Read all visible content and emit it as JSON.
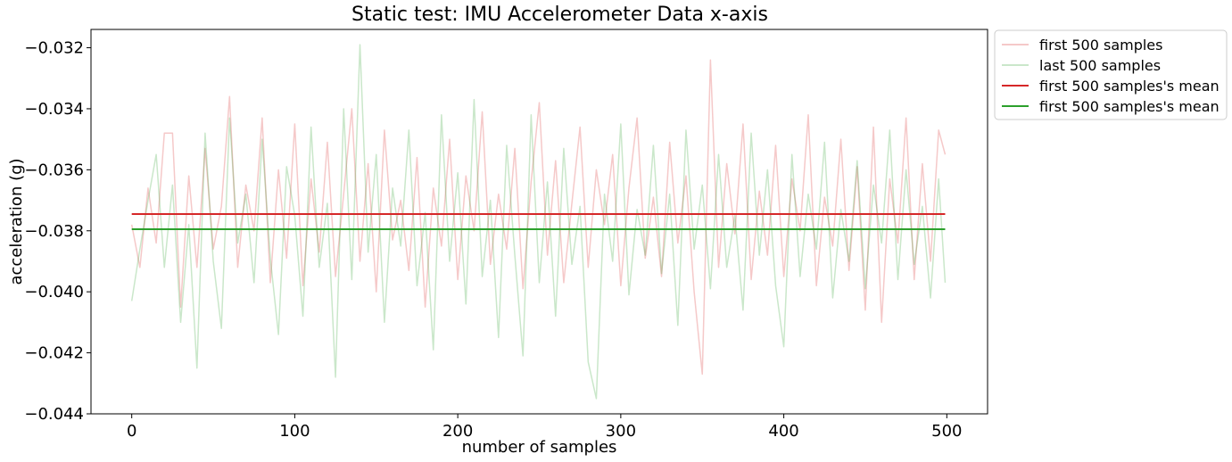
{
  "chart_data": {
    "type": "line",
    "title": "Static test: IMU Accelerometer Data x-axis",
    "xlabel": "number of samples",
    "ylabel": "acceleration (g)",
    "xlim": [
      -25,
      525
    ],
    "ylim": [
      -0.044,
      -0.0314
    ],
    "xticks": [
      0,
      100,
      200,
      300,
      400,
      500
    ],
    "xtick_labels": [
      "0",
      "100",
      "200",
      "300",
      "400",
      "500"
    ],
    "yticks": [
      -0.044,
      -0.042,
      -0.04,
      -0.038,
      -0.036,
      -0.034,
      -0.032
    ],
    "ytick_labels": [
      "−0.044",
      "−0.042",
      "−0.040",
      "−0.038",
      "−0.036",
      "−0.034",
      "−0.032"
    ],
    "grid": false,
    "legend_position": "outside-top-right",
    "series": [
      {
        "name": "first 500 samples",
        "color": "#d62728",
        "opacity": 0.25,
        "linewidth": 1.5,
        "x": [
          0,
          5,
          10,
          15,
          20,
          25,
          30,
          35,
          40,
          45,
          50,
          55,
          60,
          65,
          70,
          75,
          80,
          85,
          90,
          95,
          100,
          105,
          110,
          115,
          120,
          125,
          130,
          135,
          140,
          145,
          150,
          155,
          160,
          165,
          170,
          175,
          180,
          185,
          190,
          195,
          200,
          205,
          210,
          215,
          220,
          225,
          230,
          235,
          240,
          245,
          250,
          255,
          260,
          265,
          270,
          275,
          280,
          285,
          290,
          295,
          300,
          305,
          310,
          315,
          320,
          325,
          330,
          335,
          340,
          345,
          350,
          355,
          360,
          365,
          370,
          375,
          380,
          385,
          390,
          395,
          400,
          405,
          410,
          415,
          420,
          425,
          430,
          435,
          440,
          445,
          450,
          455,
          460,
          465,
          470,
          475,
          480,
          485,
          490,
          495,
          499
        ],
        "y": [
          -0.0378,
          -0.0392,
          -0.0366,
          -0.0384,
          -0.0348,
          -0.0348,
          -0.0405,
          -0.0362,
          -0.0392,
          -0.0353,
          -0.0386,
          -0.0372,
          -0.0336,
          -0.0392,
          -0.0365,
          -0.038,
          -0.0343,
          -0.0397,
          -0.036,
          -0.0389,
          -0.0345,
          -0.0398,
          -0.0363,
          -0.0387,
          -0.0351,
          -0.0395,
          -0.0368,
          -0.034,
          -0.039,
          -0.0358,
          -0.04,
          -0.0347,
          -0.0383,
          -0.037,
          -0.0393,
          -0.0356,
          -0.0405,
          -0.0366,
          -0.0385,
          -0.035,
          -0.0396,
          -0.0362,
          -0.038,
          -0.0341,
          -0.0391,
          -0.0368,
          -0.0386,
          -0.0353,
          -0.0399,
          -0.0364,
          -0.0338,
          -0.0388,
          -0.0357,
          -0.0397,
          -0.0371,
          -0.0346,
          -0.0392,
          -0.036,
          -0.0378,
          -0.0355,
          -0.0398,
          -0.0366,
          -0.0343,
          -0.0389,
          -0.0369,
          -0.0395,
          -0.0351,
          -0.0384,
          -0.0362,
          -0.04,
          -0.0427,
          -0.0324,
          -0.0392,
          -0.0358,
          -0.0381,
          -0.0345,
          -0.0396,
          -0.0367,
          -0.0388,
          -0.0352,
          -0.0395,
          -0.0363,
          -0.038,
          -0.0342,
          -0.0398,
          -0.0369,
          -0.0385,
          -0.035,
          -0.0393,
          -0.0359,
          -0.0406,
          -0.0346,
          -0.041,
          -0.0363,
          -0.0384,
          -0.0343,
          -0.0396,
          -0.0358,
          -0.039,
          -0.0347,
          -0.0355
        ]
      },
      {
        "name": "last 500 samples",
        "color": "#2ca02c",
        "opacity": 0.25,
        "linewidth": 1.5,
        "x": [
          0,
          5,
          10,
          15,
          20,
          25,
          30,
          35,
          40,
          45,
          50,
          55,
          60,
          65,
          70,
          75,
          80,
          85,
          90,
          95,
          100,
          105,
          110,
          115,
          120,
          125,
          130,
          135,
          140,
          145,
          150,
          155,
          160,
          165,
          170,
          175,
          180,
          185,
          190,
          195,
          200,
          205,
          210,
          215,
          220,
          225,
          230,
          235,
          240,
          245,
          250,
          255,
          260,
          265,
          270,
          275,
          280,
          285,
          290,
          295,
          300,
          305,
          310,
          315,
          320,
          325,
          330,
          335,
          340,
          345,
          350,
          355,
          360,
          365,
          370,
          375,
          380,
          385,
          390,
          395,
          400,
          405,
          410,
          415,
          420,
          425,
          430,
          435,
          440,
          445,
          450,
          455,
          460,
          465,
          470,
          475,
          480,
          485,
          490,
          495,
          499
        ],
        "y": [
          -0.0403,
          -0.0386,
          -0.037,
          -0.0355,
          -0.0392,
          -0.0365,
          -0.041,
          -0.0378,
          -0.0425,
          -0.0348,
          -0.039,
          -0.0412,
          -0.0343,
          -0.0384,
          -0.0368,
          -0.0397,
          -0.035,
          -0.0389,
          -0.0414,
          -0.0359,
          -0.0375,
          -0.0408,
          -0.0346,
          -0.0392,
          -0.0371,
          -0.0428,
          -0.034,
          -0.0396,
          -0.0319,
          -0.0387,
          -0.0355,
          -0.041,
          -0.0366,
          -0.0385,
          -0.0347,
          -0.0398,
          -0.0374,
          -0.0419,
          -0.0342,
          -0.039,
          -0.0361,
          -0.0404,
          -0.0337,
          -0.0395,
          -0.037,
          -0.0415,
          -0.0352,
          -0.0388,
          -0.0421,
          -0.0342,
          -0.0397,
          -0.0364,
          -0.0408,
          -0.0353,
          -0.0391,
          -0.0372,
          -0.0423,
          -0.0435,
          -0.0368,
          -0.039,
          -0.0345,
          -0.0401,
          -0.0373,
          -0.0388,
          -0.0352,
          -0.0394,
          -0.0368,
          -0.0411,
          -0.0347,
          -0.0386,
          -0.0365,
          -0.0399,
          -0.0355,
          -0.0392,
          -0.0375,
          -0.0406,
          -0.0348,
          -0.0388,
          -0.036,
          -0.0398,
          -0.0418,
          -0.0355,
          -0.0395,
          -0.0368,
          -0.0386,
          -0.0351,
          -0.0402,
          -0.0373,
          -0.039,
          -0.0357,
          -0.0399,
          -0.0365,
          -0.0384,
          -0.0347,
          -0.0396,
          -0.036,
          -0.0391,
          -0.0372,
          -0.0402,
          -0.0363,
          -0.0397
        ]
      },
      {
        "name": "first 500 samples's mean",
        "color": "#d62728",
        "opacity": 1,
        "linewidth": 2,
        "x": [
          0,
          499
        ],
        "y": [
          -0.03745,
          -0.03745
        ]
      },
      {
        "name": "first 500 samples's mean",
        "color": "#2ca02c",
        "opacity": 1,
        "linewidth": 2,
        "x": [
          0,
          499
        ],
        "y": [
          -0.03795,
          -0.03795
        ]
      }
    ]
  }
}
